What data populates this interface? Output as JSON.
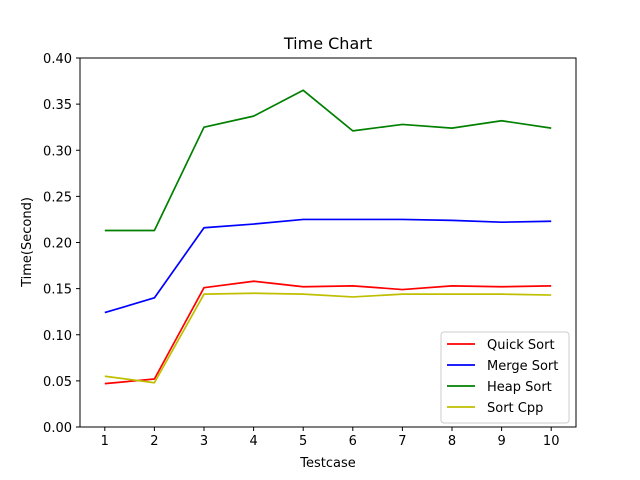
{
  "chart_data": {
    "type": "line",
    "title": "Time Chart",
    "xlabel": "Testcase",
    "ylabel": "Time(Second)",
    "x": [
      1,
      2,
      3,
      4,
      5,
      6,
      7,
      8,
      9,
      10
    ],
    "xlim": [
      0.5,
      10.5
    ],
    "ylim": [
      0,
      0.4
    ],
    "yticks": [
      "0.00",
      "0.05",
      "0.10",
      "0.15",
      "0.20",
      "0.25",
      "0.30",
      "0.35",
      "0.40"
    ],
    "grid": false,
    "legend_position": "lower-right",
    "series": [
      {
        "name": "Quick Sort",
        "color": "#ff0000",
        "values": [
          0.047,
          0.052,
          0.151,
          0.158,
          0.152,
          0.153,
          0.149,
          0.153,
          0.152,
          0.153
        ]
      },
      {
        "name": "Merge Sort",
        "color": "#0000ff",
        "values": [
          0.124,
          0.14,
          0.216,
          0.22,
          0.225,
          0.225,
          0.225,
          0.224,
          0.222,
          0.223
        ]
      },
      {
        "name": "Heap Sort",
        "color": "#008000",
        "values": [
          0.213,
          0.213,
          0.325,
          0.337,
          0.365,
          0.321,
          0.328,
          0.324,
          0.332,
          0.324
        ]
      },
      {
        "name": "Sort Cpp",
        "color": "#bfbf00",
        "values": [
          0.055,
          0.048,
          0.144,
          0.145,
          0.144,
          0.141,
          0.144,
          0.144,
          0.144,
          0.143
        ]
      }
    ]
  }
}
